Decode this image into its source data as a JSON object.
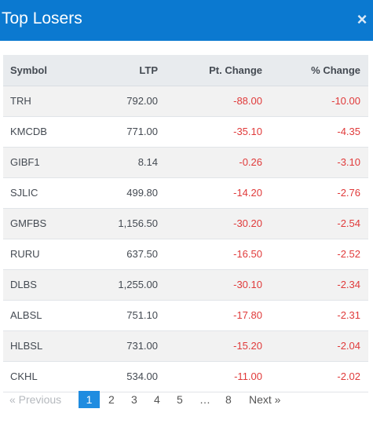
{
  "header": {
    "title": "Top Losers",
    "close_label": "×"
  },
  "table": {
    "columns": {
      "symbol": "Symbol",
      "ltp": "LTP",
      "pt_change": "Pt. Change",
      "pct_change": "% Change"
    },
    "rows": [
      {
        "symbol": "TRH",
        "ltp": "792.00",
        "pt_change": "-88.00",
        "pct_change": "-10.00"
      },
      {
        "symbol": "KMCDB",
        "ltp": "771.00",
        "pt_change": "-35.10",
        "pct_change": "-4.35"
      },
      {
        "symbol": "GIBF1",
        "ltp": "8.14",
        "pt_change": "-0.26",
        "pct_change": "-3.10"
      },
      {
        "symbol": "SJLIC",
        "ltp": "499.80",
        "pt_change": "-14.20",
        "pct_change": "-2.76"
      },
      {
        "symbol": "GMFBS",
        "ltp": "1,156.50",
        "pt_change": "-30.20",
        "pct_change": "-2.54"
      },
      {
        "symbol": "RURU",
        "ltp": "637.50",
        "pt_change": "-16.50",
        "pct_change": "-2.52"
      },
      {
        "symbol": "DLBS",
        "ltp": "1,255.00",
        "pt_change": "-30.10",
        "pct_change": "-2.34"
      },
      {
        "symbol": "ALBSL",
        "ltp": "751.10",
        "pt_change": "-17.80",
        "pct_change": "-2.31"
      },
      {
        "symbol": "HLBSL",
        "ltp": "731.00",
        "pt_change": "-15.20",
        "pct_change": "-2.04"
      },
      {
        "symbol": "CKHL",
        "ltp": "534.00",
        "pt_change": "-11.00",
        "pct_change": "-2.02"
      }
    ]
  },
  "pagination": {
    "previous": "« Previous",
    "pages": [
      "1",
      "2",
      "3",
      "4",
      "5"
    ],
    "ellipsis": "…",
    "last_page": "8",
    "next": "Next »",
    "current": "1"
  },
  "colors": {
    "header_bg": "#0b79d0",
    "negative": "#e03a3a",
    "active_page": "#1f8ce0"
  }
}
